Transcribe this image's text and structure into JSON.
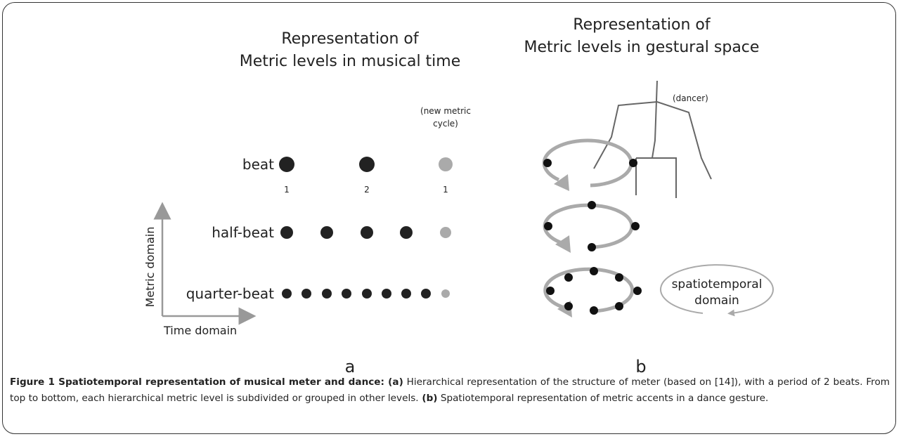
{
  "figure": {
    "panel_a": {
      "title": [
        "Representation of",
        "Metric levels in musical time"
      ],
      "levels": [
        "beat",
        "half-beat",
        "quarter-beat"
      ],
      "beat_numbers": [
        "1",
        "2",
        "1"
      ],
      "new_cycle_note": [
        "(new metric",
        "cycle)"
      ],
      "y_axis_label": "Metric domain",
      "x_axis_label": "Time domain",
      "letter": "a"
    },
    "panel_b": {
      "title": [
        "Representation of",
        "Metric levels in gestural space"
      ],
      "dancer_label": "(dancer)",
      "domain_label": [
        "spatiotemporal",
        "domain"
      ],
      "letter": "b"
    },
    "caption": {
      "heading": "Figure 1 Spatiotemporal representation of musical meter and dance",
      "parts": [
        {
          "bold": ":",
          "text": ""
        },
        {
          "bold": " (a)",
          "text": " Hierarchical representation of the structure of meter (based on [14]), with a period of 2 beats. From top to bottom, each hierarchical metric level is subdivided or grouped in other levels."
        },
        {
          "bold": " (b)",
          "text": " Spatiotemporal representation of metric accents in a dance gesture."
        }
      ]
    }
  }
}
